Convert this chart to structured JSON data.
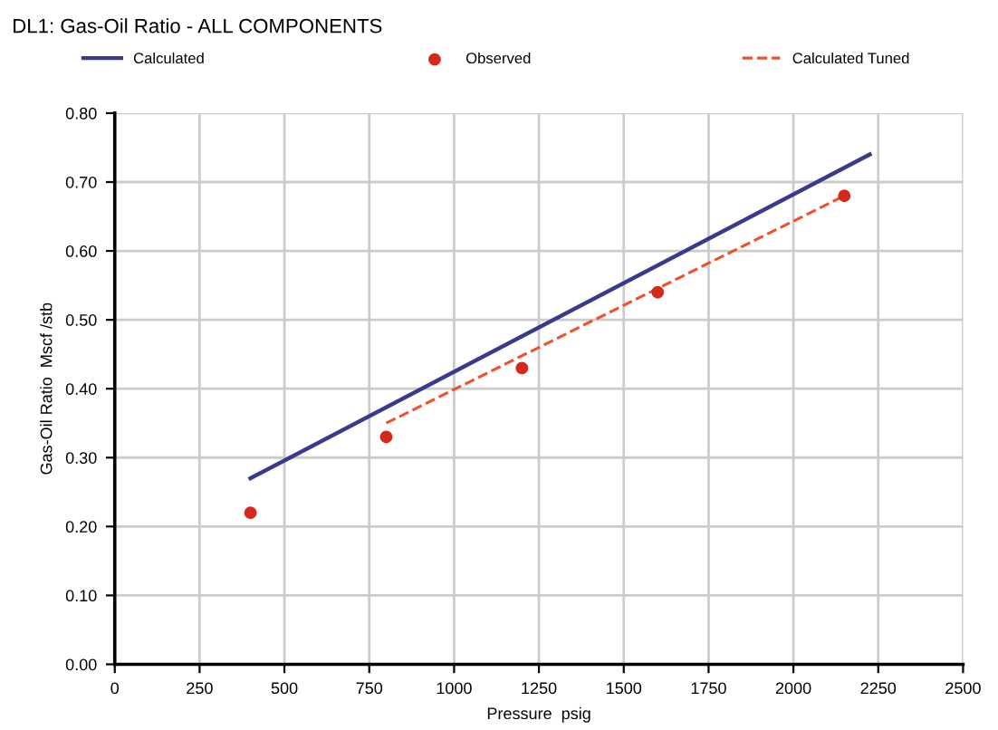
{
  "chart_data": {
    "type": "line",
    "title": "DL1: Gas-Oil Ratio - ALL COMPONENTS",
    "xlabel": "Pressure  psig",
    "ylabel": "Gas-Oil Ratio  Mscf /stb",
    "series": [
      {
        "name": "Calculated",
        "color": "#3a3a8c",
        "x": [
          400,
          2225
        ],
        "values": [
          0.27,
          0.74
        ],
        "line_style": "solid",
        "marker": "none"
      },
      {
        "name": "Observed",
        "type": "scatter",
        "color": "#d42a1e",
        "x": [
          400,
          800,
          1200,
          1600,
          2150
        ],
        "values": [
          0.22,
          0.33,
          0.43,
          0.54,
          0.68
        ],
        "marker": "circle"
      },
      {
        "name": "Calculated Tuned",
        "color": "#f0502a",
        "x": [
          800,
          2150
        ],
        "values": [
          0.35,
          0.68
        ],
        "line_style": "dashed",
        "marker": "none"
      }
    ],
    "xlim": [
      0,
      2500
    ],
    "xticks": [
      0,
      250,
      500,
      750,
      1000,
      1250,
      1500,
      1750,
      2000,
      2250,
      2500
    ],
    "ylim": [
      0,
      0.8
    ],
    "yticks": [
      {
        "value": 0,
        "label": "0.00"
      },
      {
        "value": 0.1,
        "label": "0.10"
      },
      {
        "value": 0.2,
        "label": "0.20"
      },
      {
        "value": 0.3,
        "label": "0.30"
      },
      {
        "value": 0.4,
        "label": "0.40"
      },
      {
        "value": 0.5,
        "label": "0.50"
      },
      {
        "value": 0.6,
        "label": "0.60"
      },
      {
        "value": 0.7,
        "label": "0.70"
      },
      {
        "value": 0.8,
        "label": "0.80"
      }
    ],
    "grid": true,
    "legend": "top"
  }
}
